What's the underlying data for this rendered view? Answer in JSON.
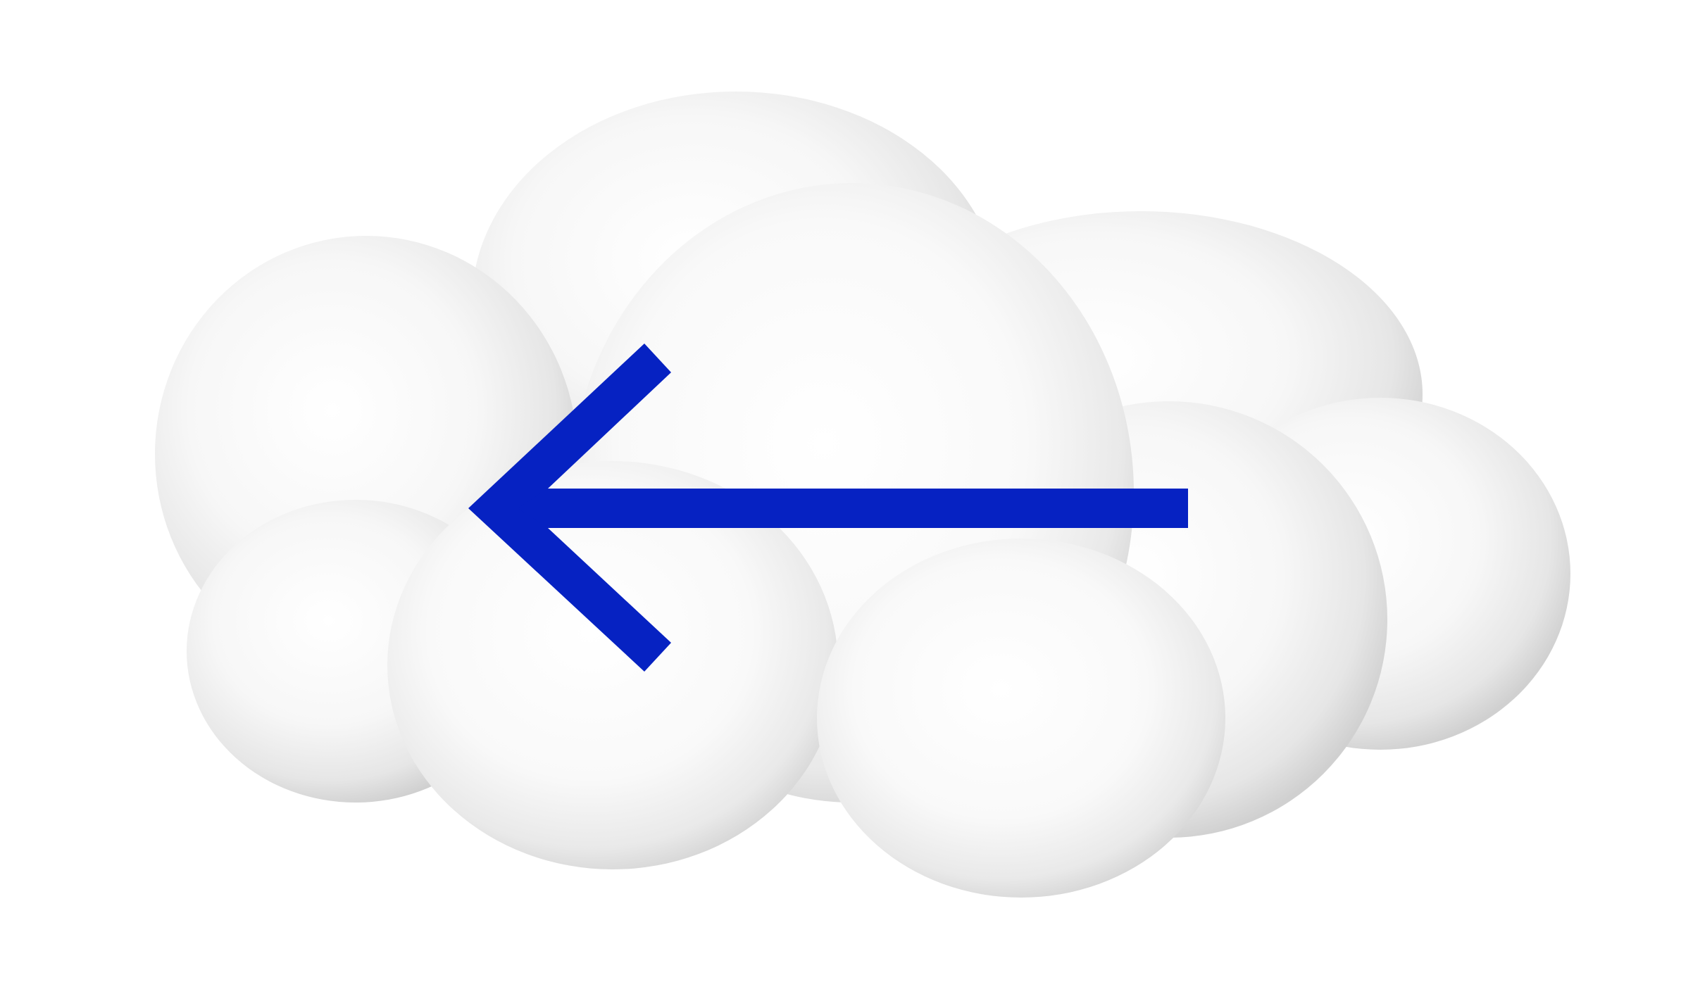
{
  "colors": {
    "background": "#ffffff",
    "cloud_highlight": "#ffffff",
    "cloud_mid": "#f1f1f1",
    "cloud_shadow": "#d2d2d2",
    "arrow": "#0622c2"
  },
  "icons": {
    "cloud": "cloud-icon",
    "arrow": "arrow-left-icon"
  }
}
